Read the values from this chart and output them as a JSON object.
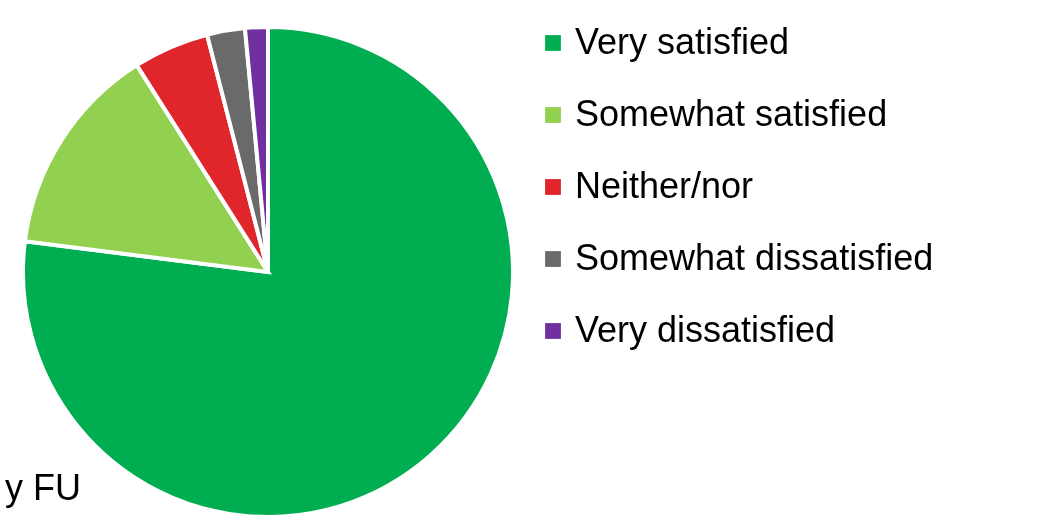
{
  "chart_data": {
    "type": "pie",
    "categories": [
      "Very satisfied",
      "Somewhat satisfied",
      "Neither/nor",
      "Somewhat dissatisfied",
      "Very dissatisfied"
    ],
    "values": [
      77,
      14,
      5,
      2.5,
      1.5
    ],
    "colors": [
      "#00ad50",
      "#92d050",
      "#e0262b",
      "#6a6a6a",
      "#7030a0"
    ],
    "legend": "right",
    "annotations": [
      "y FU"
    ]
  }
}
